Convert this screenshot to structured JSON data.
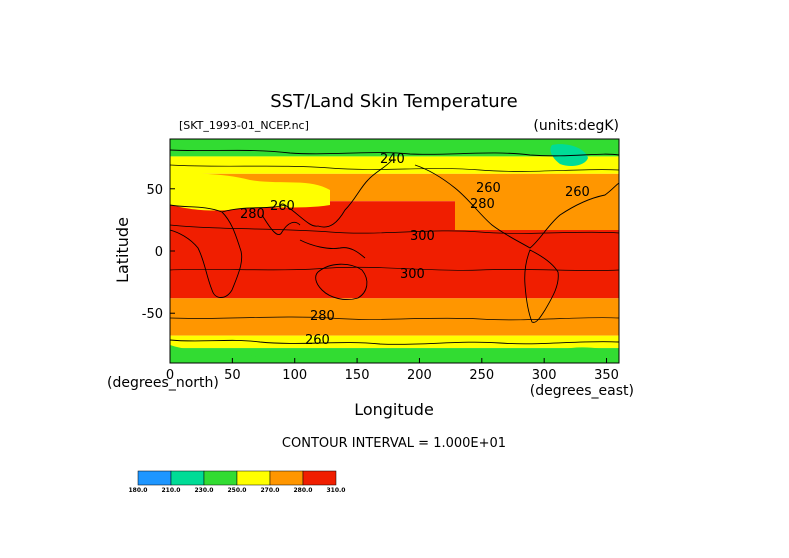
{
  "chart_data": {
    "type": "heatmap",
    "title": "SST/Land Skin Temperature",
    "file_label": "[SKT_1993-01_NCEP.nc]",
    "units_label": "(units:degK)",
    "xlabel": "Longitude",
    "ylabel": "Latitude",
    "x_unit_label": "(degrees_east)",
    "y_unit_label": "(degrees_north)",
    "xlim": [
      0,
      360
    ],
    "ylim": [
      -90,
      90
    ],
    "x_ticks": [
      0,
      50,
      100,
      150,
      200,
      250,
      300,
      350
    ],
    "y_ticks": [
      50,
      0,
      -50
    ],
    "contour_interval_text": "CONTOUR INTERVAL = 1.000E+01",
    "contour_labels": [
      "240",
      "260",
      "280",
      "300",
      "300",
      "280",
      "260",
      "260",
      "280",
      "260"
    ],
    "colorbar": {
      "levels": [
        "180.0",
        "210.0",
        "230.0",
        "250.0",
        "270.0",
        "280.0",
        "310.0"
      ],
      "colors": [
        "#1e96ff",
        "#00dc96",
        "#32dc32",
        "#ffff00",
        "#ff9600",
        "#f01e00"
      ]
    },
    "bands": [
      {
        "lat_top": 90,
        "lat_bottom": 76,
        "color": "#32dc32"
      },
      {
        "lat_top": 76,
        "lat_bottom": 62,
        "color": "#ffff00"
      },
      {
        "lat_top": 62,
        "lat_bottom": 40,
        "color": "#ff9600"
      },
      {
        "lat_top": 40,
        "lat_bottom": -38,
        "color": "#f01e00"
      },
      {
        "lat_top": -38,
        "lat_bottom": -68,
        "color": "#ff9600"
      },
      {
        "lat_top": -68,
        "lat_bottom": -78,
        "color": "#ffff00"
      },
      {
        "lat_top": -78,
        "lat_bottom": -90,
        "color": "#32dc32"
      }
    ]
  }
}
